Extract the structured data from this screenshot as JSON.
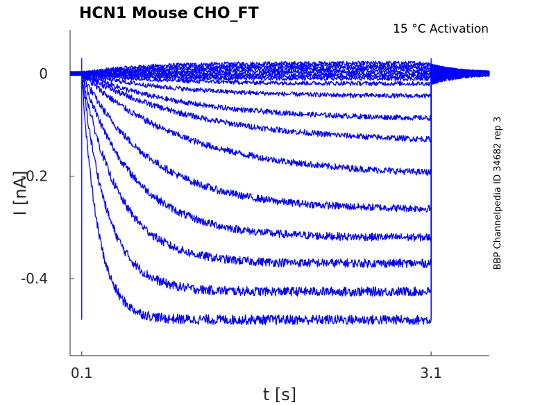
{
  "chart_data": {
    "type": "line",
    "title": "HCN1  Mouse  CHO_FT",
    "annotation": "15 °C  Activation",
    "side_label": "BBP Channelpedia ID 34682 rep 3",
    "xlabel": "t [s]",
    "ylabel": "I [nA]",
    "xlim": [
      0.0,
      3.6
    ],
    "ylim": [
      -0.55,
      0.085
    ],
    "x_ticks": [
      0.1,
      3.1
    ],
    "x_tick_labels": [
      "0.1",
      "3.1"
    ],
    "y_ticks": [
      0,
      -0.2,
      -0.4
    ],
    "y_tick_labels": [
      "0",
      "-0.2",
      "-0.4"
    ],
    "grid": false,
    "legend": "none",
    "series_color": "#0000ff",
    "step_start": 0.1,
    "step_end": 3.1,
    "sweeps": [
      {
        "steady": 0.02,
        "tau": 0.5
      },
      {
        "steady": 0.015,
        "tau": 0.5
      },
      {
        "steady": 0.01,
        "tau": 0.5
      },
      {
        "steady": 0.005,
        "tau": 0.5
      },
      {
        "steady": 0.0,
        "tau": 0.5
      },
      {
        "steady": -0.005,
        "tau": 0.5
      },
      {
        "steady": -0.01,
        "tau": 0.6
      },
      {
        "steady": -0.02,
        "tau": 0.7
      },
      {
        "steady": -0.045,
        "tau": 0.8
      },
      {
        "steady": -0.09,
        "tau": 0.9
      },
      {
        "steady": -0.135,
        "tau": 1.0
      },
      {
        "steady": -0.2,
        "tau": 0.9
      },
      {
        "steady": -0.265,
        "tau": 0.6
      },
      {
        "steady": -0.32,
        "tau": 0.45
      },
      {
        "steady": -0.37,
        "tau": 0.32
      },
      {
        "steady": -0.425,
        "tau": 0.22
      },
      {
        "steady": -0.48,
        "tau": 0.14
      }
    ]
  }
}
